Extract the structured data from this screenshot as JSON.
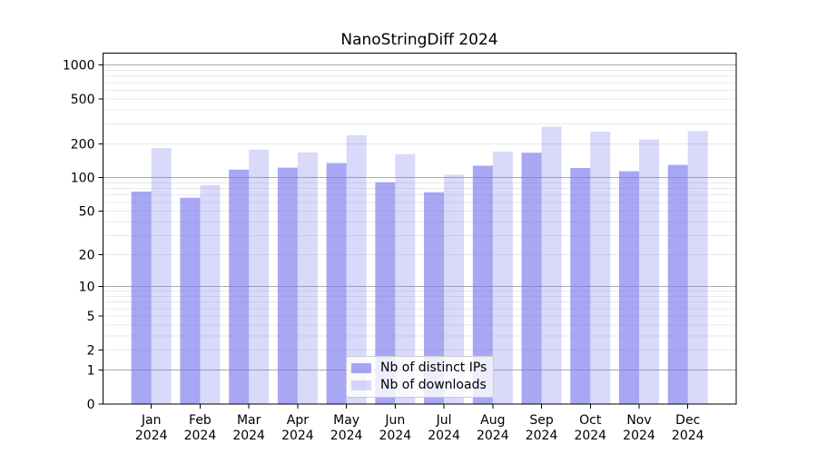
{
  "chart_data": {
    "type": "bar",
    "title": "NanoStringDiff 2024",
    "categories": [
      "Jan",
      "Feb",
      "Mar",
      "Apr",
      "May",
      "Jun",
      "Jul",
      "Aug",
      "Sep",
      "Oct",
      "Nov",
      "Dec"
    ],
    "category_year": "2024",
    "series": [
      {
        "name": "Nb of distinct IPs",
        "color": "rgba(120,120,238,0.65)",
        "values": [
          75,
          66,
          118,
          123,
          135,
          91,
          74,
          128,
          167,
          122,
          114,
          130
        ]
      },
      {
        "name": "Nb of downloads",
        "color": "rgba(120,120,238,0.28)",
        "values": [
          184,
          86,
          178,
          168,
          239,
          162,
          106,
          171,
          284,
          257,
          219,
          260
        ]
      }
    ],
    "y_scale": "log10(1+x)",
    "y_ticks": [
      0,
      1,
      2,
      5,
      10,
      20,
      50,
      100,
      200,
      500,
      1000
    ],
    "ylim": [
      0,
      1270
    ],
    "grid": {
      "on": true,
      "major_values": [
        1,
        10,
        100,
        1000
      ],
      "major_color": "#aaaaaa",
      "minor_color": "#e9e9e9"
    },
    "legend": {
      "position": "lower-center"
    },
    "axis_color": "#000000",
    "background": "#ffffff"
  }
}
